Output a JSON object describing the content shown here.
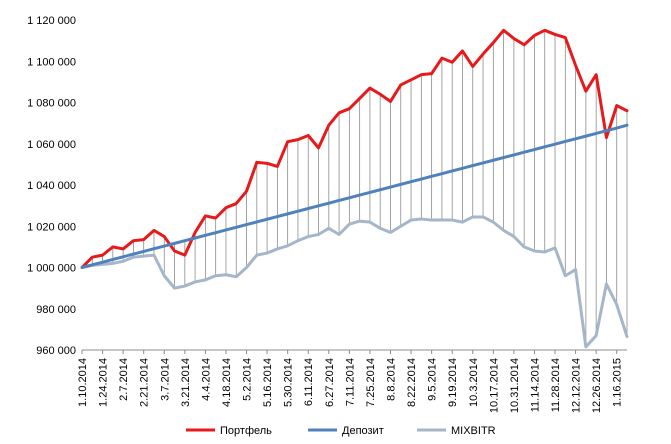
{
  "chart_data": {
    "type": "line",
    "title": "",
    "xlabel": "",
    "ylabel": "",
    "ylim": [
      960000,
      1120000
    ],
    "y_ticks": [
      "960 000",
      "980 000",
      "1 000 000",
      "1 020 000",
      "1 040 000",
      "1 060 000",
      "1 080 000",
      "1 100 000",
      "1 120 000"
    ],
    "y_tick_values": [
      960000,
      980000,
      1000000,
      1020000,
      1040000,
      1060000,
      1080000,
      1100000,
      1120000
    ],
    "x_tick_labels": [
      "1.10.2014",
      "1.24.2014",
      "2.7.2014",
      "2.21.2014",
      "3.7.2014",
      "3.21.2014",
      "4.4.2014",
      "4.18.2014",
      "5.2.2014",
      "5.16.2014",
      "5.30.2014",
      "6.11.2014",
      "6.27.2014",
      "7.11.2014",
      "7.25.2014",
      "8.8.2014",
      "8.22.2014",
      "9.5.2014",
      "9.19.2014",
      "10.3.2014",
      "10.17.2014",
      "10.31.2014",
      "11.14.2014",
      "11.28.2014",
      "12.12.2014",
      "12.26.2014",
      "1.16.2015"
    ],
    "legend_position": "bottom",
    "grid": "vertical drop lines between series",
    "series": [
      {
        "name": "Портфель",
        "color": "#e8191b",
        "values": [
          1000000,
          1005000,
          1006000,
          1010000,
          1009000,
          1013000,
          1013500,
          1018000,
          1015000,
          1008000,
          1006000,
          1017000,
          1025000,
          1024000,
          1029000,
          1031000,
          1037000,
          1051000,
          1050500,
          1049000,
          1061000,
          1062000,
          1064000,
          1058000,
          1069000,
          1075000,
          1077000,
          1082000,
          1087000,
          1084000,
          1080500,
          1088500,
          1091000,
          1093500,
          1094000,
          1101500,
          1099500,
          1105000,
          1097500,
          1103500,
          1109000,
          1115000,
          1111000,
          1108000,
          1112500,
          1115000,
          1113000,
          1111500,
          1098000,
          1085500,
          1093500,
          1063000,
          1078500,
          1076000
        ]
      },
      {
        "name": "Депозит",
        "color": "#4f81bd",
        "values": [
          1000000,
          1001300,
          1002600,
          1003900,
          1005200,
          1006500,
          1007800,
          1009100,
          1010400,
          1011700,
          1013000,
          1014300,
          1015600,
          1016900,
          1018200,
          1019500,
          1020800,
          1022100,
          1023400,
          1024700,
          1026000,
          1027300,
          1028600,
          1029900,
          1031200,
          1032500,
          1033800,
          1035100,
          1036400,
          1037700,
          1039000,
          1040300,
          1041600,
          1042900,
          1044200,
          1045500,
          1046800,
          1048100,
          1049400,
          1050700,
          1052000,
          1053300,
          1054600,
          1055900,
          1057200,
          1058500,
          1059800,
          1061100,
          1062400,
          1063700,
          1065000,
          1066300,
          1067600,
          1069000
        ]
      },
      {
        "name": "MIXBITR",
        "color": "#a6b6c9",
        "values": [
          1000000,
          1001000,
          1001500,
          1002000,
          1003000,
          1005000,
          1005500,
          1006000,
          996000,
          990000,
          991000,
          993000,
          994000,
          996000,
          996500,
          995500,
          1000000,
          1006000,
          1007000,
          1009000,
          1010500,
          1013000,
          1015000,
          1016000,
          1019000,
          1016000,
          1021000,
          1022500,
          1022000,
          1019000,
          1017000,
          1020000,
          1023000,
          1023500,
          1023000,
          1023000,
          1023000,
          1022000,
          1024500,
          1024500,
          1022000,
          1018000,
          1015000,
          1010000,
          1008000,
          1007500,
          1009500,
          996000,
          999000,
          961500,
          967000,
          992000,
          982000,
          966500
        ]
      }
    ],
    "x_dates_note_free": true
  }
}
